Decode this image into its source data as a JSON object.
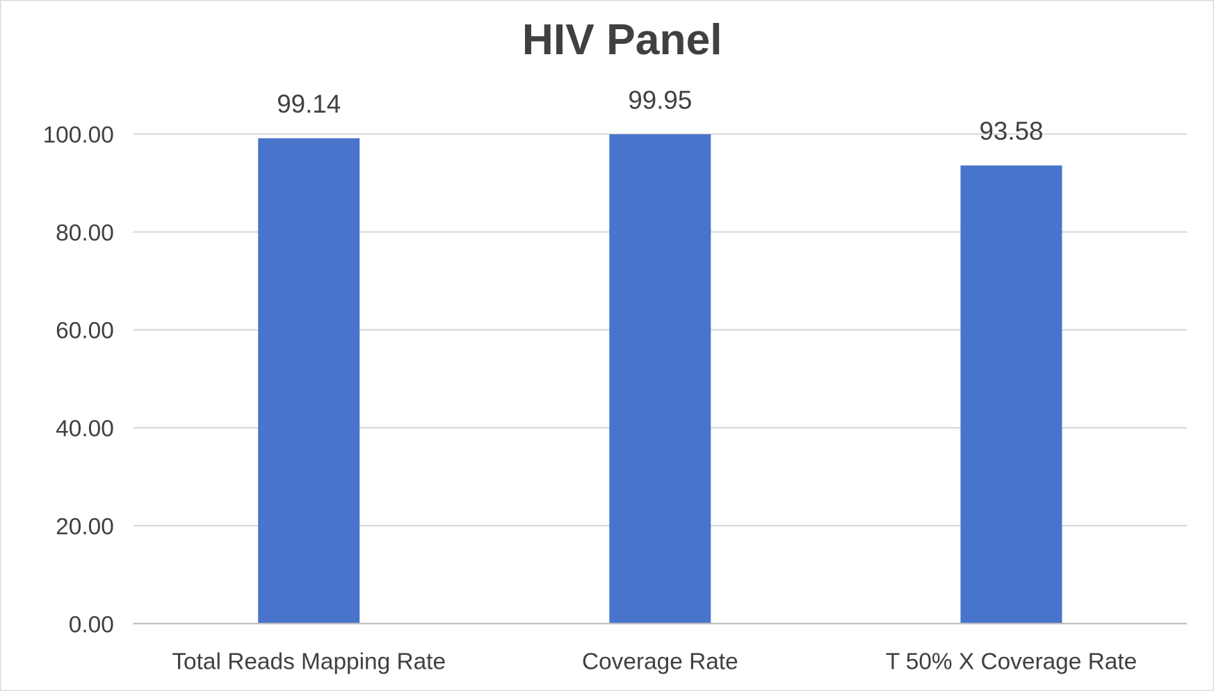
{
  "chart_data": {
    "type": "bar",
    "title": "HIV Panel",
    "categories": [
      "Total Reads Mapping Rate",
      "Coverage Rate",
      "T 50% X Coverage Rate"
    ],
    "values": [
      99.14,
      99.95,
      93.58
    ],
    "data_labels": [
      "99.14",
      "99.95",
      "93.58"
    ],
    "xlabel": "",
    "ylabel": "",
    "ylim": [
      0,
      100
    ],
    "yticks": [
      "0.00",
      "20.00",
      "40.00",
      "60.00",
      "80.00",
      "100.00"
    ],
    "grid": true,
    "legend": "none",
    "colors": {
      "bar": "#4874CB",
      "grid": "#D9D9D9",
      "text": "#404040",
      "border": "#D9D9D9"
    }
  }
}
